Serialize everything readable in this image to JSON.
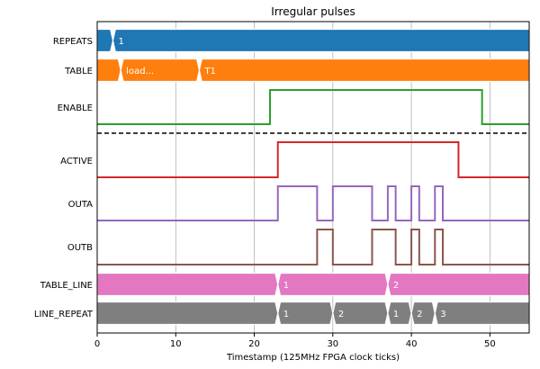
{
  "chart_data": {
    "type": "timing",
    "title": "Irregular pulses",
    "xlabel": "Timestamp (125MHz FPGA clock ticks)",
    "xlim": [
      0,
      55
    ],
    "xticks": [
      0,
      10,
      20,
      30,
      40,
      50
    ],
    "grid": "vertical",
    "separator_after": "ENABLE",
    "signals": [
      {
        "name": "REPEATS",
        "kind": "bus",
        "color": "#1f77b4",
        "segments": [
          {
            "start": 0,
            "label": ""
          },
          {
            "start": 2,
            "label": "1"
          }
        ]
      },
      {
        "name": "TABLE",
        "kind": "bus",
        "color": "#ff7f0e",
        "segments": [
          {
            "start": 0,
            "label": ""
          },
          {
            "start": 3,
            "label": "load..."
          },
          {
            "start": 13,
            "label": "T1"
          }
        ]
      },
      {
        "name": "ENABLE",
        "kind": "bit",
        "color": "#2ca02c",
        "initial": 0,
        "transitions": [
          22,
          49
        ]
      },
      {
        "name": "ACTIVE",
        "kind": "bit",
        "color": "#d62728",
        "initial": 0,
        "transitions": [
          23,
          46
        ]
      },
      {
        "name": "OUTA",
        "kind": "bit",
        "color": "#9467bd",
        "initial": 0,
        "transitions": [
          23,
          28,
          30,
          35,
          37,
          38,
          40,
          41,
          43,
          44
        ]
      },
      {
        "name": "OUTB",
        "kind": "bit",
        "color": "#8c564b",
        "initial": 0,
        "transitions": [
          28,
          30,
          35,
          38,
          40,
          41,
          43,
          44
        ]
      },
      {
        "name": "TABLE_LINE",
        "kind": "bus",
        "color": "#e377c2",
        "segments": [
          {
            "start": 0,
            "label": ""
          },
          {
            "start": 23,
            "label": "1"
          },
          {
            "start": 37,
            "label": "2"
          }
        ]
      },
      {
        "name": "LINE_REPEAT",
        "kind": "bus",
        "color": "#7f7f7f",
        "segments": [
          {
            "start": 0,
            "label": ""
          },
          {
            "start": 23,
            "label": "1"
          },
          {
            "start": 30,
            "label": "2"
          },
          {
            "start": 37,
            "label": "1"
          },
          {
            "start": 40,
            "label": "2"
          },
          {
            "start": 43,
            "label": "3"
          }
        ]
      }
    ]
  }
}
